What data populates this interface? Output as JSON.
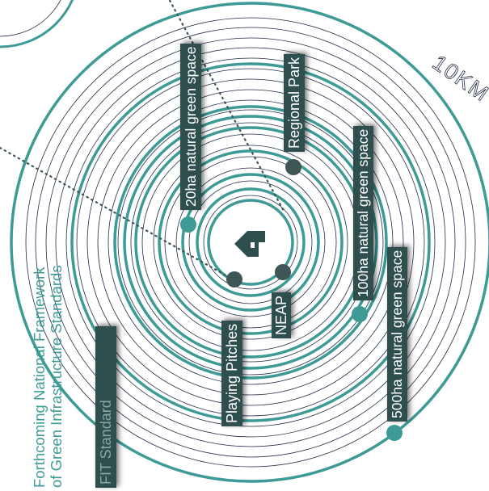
{
  "colors": {
    "teal": "#3d9a95",
    "navy": "#232c46",
    "dark_label": "#2f4f4e",
    "dot": "#3e5656",
    "white": "#ffffff"
  },
  "center_icon": "arrow-house-icon",
  "labels": {
    "ten_km": "10KM",
    "framework_line1": "Forthcoming National Framework",
    "framework_line2": "of Green Infrastructure Standards",
    "fit_standard": "FIT Standard",
    "playing_pitches": "Playing Pitches",
    "neap": "NEAP",
    "regional_park": "Regional Park",
    "ng20": "20ha natural green space",
    "ng100": "100ha natural green space",
    "ng500": "500ha natural green space"
  }
}
